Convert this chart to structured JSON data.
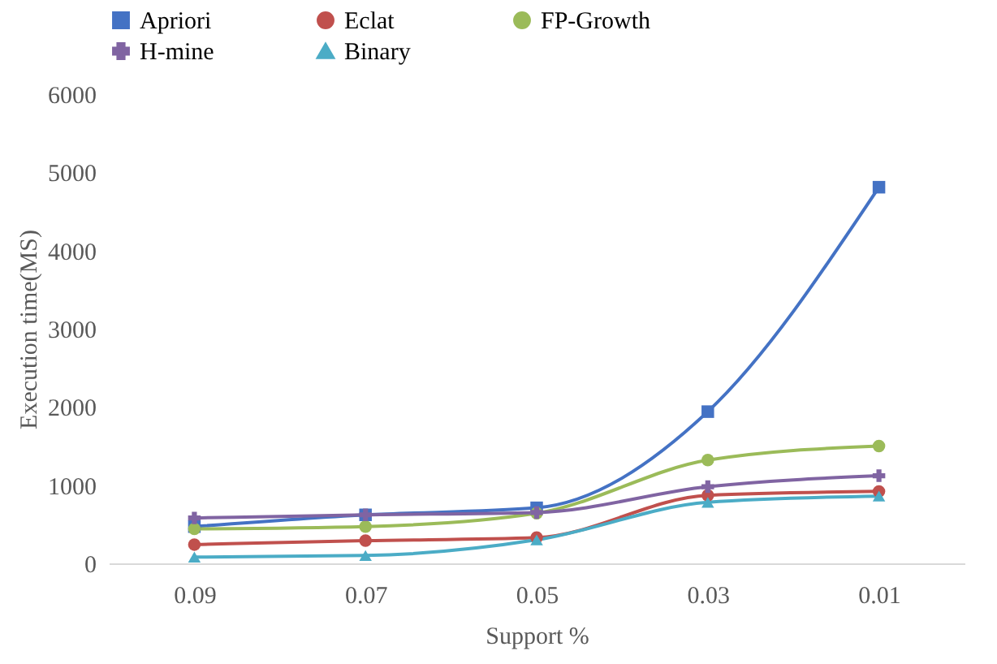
{
  "chart_data": {
    "type": "line",
    "xlabel": "Support %",
    "ylabel": "Execution time(MS)",
    "categories": [
      "0.09",
      "0.07",
      "0.05",
      "0.03",
      "0.01"
    ],
    "ylim": [
      0,
      6000
    ],
    "yticks": [
      0,
      1000,
      2000,
      3000,
      4000,
      5000,
      6000
    ],
    "grid": false,
    "legend": "top",
    "line_style": "solid",
    "series": [
      {
        "name": "Apriori",
        "color": "#4472c4",
        "marker": "square",
        "values": [
          470,
          620,
          710,
          1940,
          4810
        ]
      },
      {
        "name": "Eclat",
        "color": "#c0504d",
        "marker": "circle",
        "values": [
          240,
          290,
          330,
          870,
          920
        ]
      },
      {
        "name": "FP-Growth",
        "color": "#9bbb59",
        "marker": "circle",
        "values": [
          440,
          470,
          640,
          1320,
          1500
        ]
      },
      {
        "name": "H-mine",
        "color": "#8064a2",
        "marker": "cross",
        "values": [
          580,
          620,
          650,
          980,
          1120
        ]
      },
      {
        "name": "Binary",
        "color": "#4bacc6",
        "marker": "triangle",
        "values": [
          80,
          100,
          300,
          780,
          860
        ]
      }
    ]
  }
}
